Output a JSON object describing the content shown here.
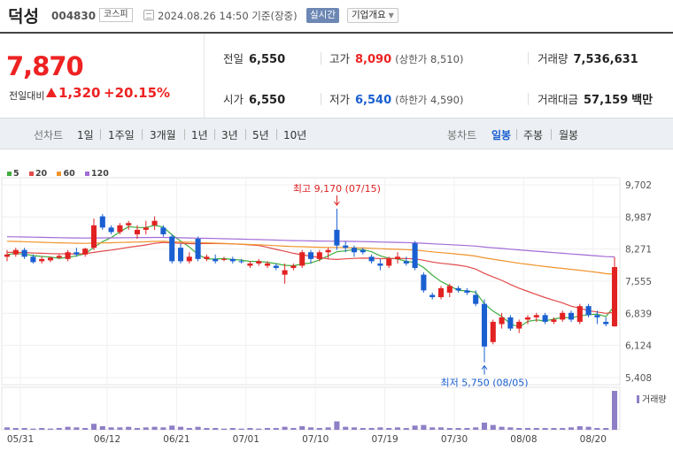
{
  "header": {
    "name": "덕성",
    "code": "004830",
    "market": "코스피",
    "datetime": "2024.08.26 14:50 기준(장중)",
    "realtime": "실시간",
    "company_btn": "기업개요"
  },
  "summary": {
    "price": "7,870",
    "change_label": "전일대비",
    "change": "1,320",
    "change_pct": "+20.15%",
    "prev_close_label": "전일",
    "prev_close": "6,550",
    "high_label": "고가",
    "high": "8,090",
    "upper_limit": "(상한가 8,510)",
    "volume_label": "거래량",
    "volume": "7,536,631",
    "open_label": "시가",
    "open": "6,550",
    "low_label": "저가",
    "low": "6,540",
    "lower_limit": "(하한가 4,590)",
    "amount_label": "거래대금",
    "amount": "57,159",
    "amount_unit": "백만"
  },
  "tabs": {
    "line_chart": "선차트",
    "periods": [
      "1일",
      "1주일",
      "3개월",
      "1년",
      "3년",
      "5년",
      "10년"
    ],
    "candle_chart": "봉차트",
    "candle_periods": [
      "일봉",
      "주봉",
      "월봉"
    ],
    "active_candle": "일봉"
  },
  "colors": {
    "up": "#e22222",
    "down": "#1a5fd1",
    "ma5": "#3fae3f",
    "ma20": "#e24a4a",
    "ma60": "#f0932b",
    "ma120": "#a26bd6"
  },
  "chart_data": {
    "type": "candlestick",
    "legend": [
      {
        "name": "5",
        "color": "#3fae3f"
      },
      {
        "name": "20",
        "color": "#e24a4a"
      },
      {
        "name": "60",
        "color": "#f0932b"
      },
      {
        "name": "120",
        "color": "#a26bd6"
      }
    ],
    "y_ticks": [
      "9,702",
      "8,987",
      "8,271",
      "7,555",
      "6,839",
      "6,124",
      "5,408"
    ],
    "ylim": [
      5408,
      9702
    ],
    "x_ticks": [
      "05/31",
      "06/12",
      "06/21",
      "07/01",
      "07/10",
      "07/19",
      "07/30",
      "08/08",
      "08/20"
    ],
    "annotation_high": "최고 9,170 (07/15)",
    "annotation_low": "최저 5,750 (08/05)",
    "volume_label": "거래량",
    "candles": [
      [
        8100,
        8250,
        8000,
        8150
      ],
      [
        8150,
        8300,
        8100,
        8250
      ],
      [
        8250,
        8300,
        8050,
        8100
      ],
      [
        8100,
        8150,
        7950,
        7980
      ],
      [
        8000,
        8100,
        7950,
        8050
      ],
      [
        8020,
        8100,
        7980,
        8080
      ],
      [
        8080,
        8150,
        8050,
        8120
      ],
      [
        8050,
        8250,
        8000,
        8200
      ],
      [
        8200,
        8300,
        8100,
        8150
      ],
      [
        8150,
        8300,
        8100,
        8280
      ],
      [
        8300,
        8950,
        8250,
        8800
      ],
      [
        9000,
        9050,
        8700,
        8750
      ],
      [
        8750,
        8800,
        8600,
        8650
      ],
      [
        8650,
        8850,
        8600,
        8800
      ],
      [
        8800,
        8900,
        8700,
        8850
      ],
      [
        8600,
        8800,
        8500,
        8700
      ],
      [
        8700,
        8900,
        8600,
        8750
      ],
      [
        8800,
        9000,
        8700,
        8900
      ],
      [
        8750,
        8800,
        8550,
        8600
      ],
      [
        8550,
        8600,
        7950,
        8000
      ],
      [
        8300,
        8400,
        7950,
        8000
      ],
      [
        8000,
        8200,
        7950,
        8100
      ],
      [
        8500,
        8550,
        8000,
        8050
      ],
      [
        8050,
        8150,
        8000,
        8100
      ],
      [
        8050,
        8150,
        7950,
        8000
      ],
      [
        8050,
        8100,
        8000,
        8050
      ],
      [
        8050,
        8100,
        7950,
        8000
      ],
      [
        8000,
        8050,
        7950,
        7980
      ],
      [
        7900,
        8000,
        7850,
        7950
      ],
      [
        7950,
        8050,
        7900,
        8000
      ],
      [
        7900,
        8000,
        7850,
        7950
      ],
      [
        7900,
        7950,
        7800,
        7850
      ],
      [
        7700,
        7950,
        7500,
        7800
      ],
      [
        7850,
        7950,
        7800,
        7900
      ],
      [
        7900,
        8250,
        7850,
        8200
      ],
      [
        8200,
        8250,
        7950,
        8050
      ],
      [
        8050,
        8250,
        8000,
        8200
      ],
      [
        8200,
        8300,
        8050,
        8250
      ],
      [
        8700,
        9170,
        8250,
        8350
      ],
      [
        8350,
        8450,
        8200,
        8300
      ],
      [
        8300,
        8350,
        8100,
        8200
      ],
      [
        8250,
        8300,
        8150,
        8200
      ],
      [
        8100,
        8150,
        7950,
        8000
      ],
      [
        7950,
        8050,
        7800,
        7900
      ],
      [
        7900,
        8100,
        7850,
        8050
      ],
      [
        8050,
        8200,
        7950,
        8100
      ],
      [
        8000,
        8100,
        7900,
        7950
      ],
      [
        8400,
        8450,
        7800,
        7850
      ],
      [
        7700,
        7750,
        7300,
        7350
      ],
      [
        7250,
        7300,
        7150,
        7200
      ],
      [
        7200,
        7450,
        7150,
        7400
      ],
      [
        7300,
        7500,
        7200,
        7450
      ],
      [
        7400,
        7450,
        7300,
        7350
      ],
      [
        7350,
        7400,
        7250,
        7300
      ],
      [
        7250,
        7350,
        7000,
        7050
      ],
      [
        7050,
        7150,
        5750,
        6100
      ],
      [
        6200,
        6700,
        6150,
        6650
      ],
      [
        6600,
        6850,
        6500,
        6750
      ],
      [
        6750,
        6800,
        6450,
        6500
      ],
      [
        6500,
        6700,
        6400,
        6650
      ],
      [
        6700,
        6800,
        6600,
        6750
      ],
      [
        6750,
        6850,
        6650,
        6800
      ],
      [
        6800,
        6850,
        6600,
        6650
      ],
      [
        6650,
        6750,
        6600,
        6700
      ],
      [
        6700,
        6900,
        6650,
        6850
      ],
      [
        6850,
        6900,
        6650,
        6700
      ],
      [
        6650,
        7050,
        6600,
        7000
      ],
      [
        7000,
        7050,
        6750,
        6800
      ],
      [
        6800,
        6900,
        6600,
        6750
      ],
      [
        6650,
        6750,
        6550,
        6600
      ],
      [
        6550,
        8090,
        6540,
        7870
      ]
    ],
    "volumes": [
      4,
      3,
      3,
      2,
      3,
      2,
      3,
      5,
      4,
      3,
      10,
      6,
      4,
      4,
      5,
      3,
      4,
      5,
      4,
      7,
      5,
      3,
      5,
      3,
      3,
      2,
      3,
      2,
      3,
      2,
      3,
      3,
      5,
      3,
      6,
      4,
      3,
      4,
      14,
      5,
      4,
      3,
      3,
      4,
      3,
      4,
      3,
      7,
      8,
      4,
      4,
      3,
      3,
      3,
      4,
      12,
      8,
      5,
      4,
      3,
      3,
      3,
      3,
      3,
      3,
      4,
      6,
      5,
      3,
      3,
      65
    ]
  }
}
